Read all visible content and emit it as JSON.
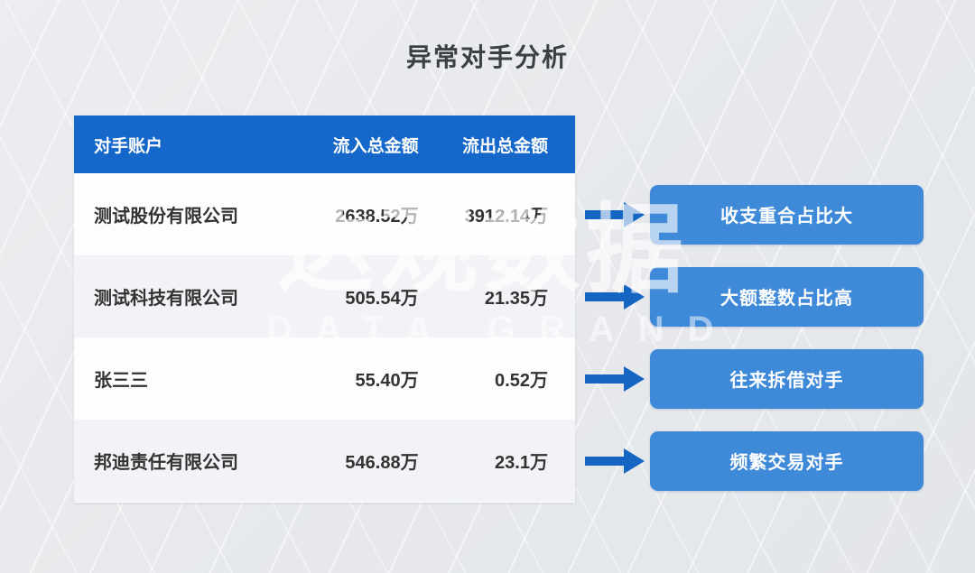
{
  "title": "异常对手分析",
  "watermark": {
    "cn": "达观数据",
    "en": "DATA GRAND"
  },
  "table": {
    "headers": [
      "对手账户",
      "流入总金额",
      "流出总金额"
    ],
    "rows": [
      {
        "account": "测试股份有限公司",
        "inflow": "2638.52万",
        "outflow": "3912.14万",
        "tag": "收支重合占比大"
      },
      {
        "account": "测试科技有限公司",
        "inflow": "505.54万",
        "outflow": "21.35万",
        "tag": "大额整数占比高"
      },
      {
        "account": "张三三",
        "inflow": "55.40万",
        "outflow": "0.52万",
        "tag": "往来拆借对手"
      },
      {
        "account": "邦迪责任有限公司",
        "inflow": "546.88万",
        "outflow": "23.1万",
        "tag": "频繁交易对手"
      }
    ]
  },
  "colors": {
    "header_blue": "#1568c9",
    "tag_blue": "#3f8ad8",
    "arrow_blue": "#1565c2",
    "title_color": "#3c4043",
    "body_text": "#333333",
    "even_row": "#f1f3f6",
    "table_bg": "#fdfdfd"
  }
}
